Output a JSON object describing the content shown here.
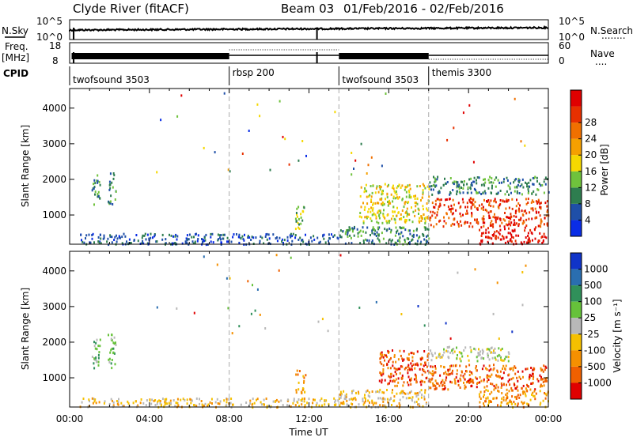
{
  "header": {
    "station": "Clyde River (fitACF)",
    "beam": "Beam 03",
    "date_range": "01/Feb/2016 - 02/Feb/2016"
  },
  "panels": {
    "nsky": {
      "left_label": "N.Sky",
      "left_ticks": [
        "10^5",
        "10^0"
      ],
      "right_ticks": [
        "10^5",
        "10^0"
      ],
      "right_label": "N.Search",
      "right_legend": "........"
    },
    "freq": {
      "left_label_1": "Freq.",
      "left_label_2": "[MHz]",
      "left_ticks": [
        "18",
        "8"
      ],
      "right_ticks": [
        "60",
        "0"
      ],
      "right_label": "Nave",
      "right_legend": "...."
    },
    "cpid": {
      "label": "CPID",
      "modes": [
        {
          "name": "twofsound 3503",
          "start": 0.0,
          "end": 8.0
        },
        {
          "name": "rbsp 200",
          "start": 8.0,
          "end": 13.5
        },
        {
          "name": "twofsound 3503",
          "start": 13.5,
          "end": 18.0
        },
        {
          "name": "themis 3300",
          "start": 18.0,
          "end": 24.0
        }
      ]
    }
  },
  "chart_data": [
    {
      "type": "heatmap",
      "name": "power",
      "ylabel": "Slant Range [km]",
      "yticks": [
        1000,
        2000,
        3000,
        4000
      ],
      "ylim": [
        180,
        4550
      ],
      "xlim": [
        0,
        24
      ],
      "colorbar": {
        "label": "Power [dB]",
        "ticks": [
          "4",
          "8",
          "12",
          "16",
          "20",
          "24",
          "28"
        ],
        "colors": [
          "#0a2de6",
          "#1f4fa8",
          "#2e7d4f",
          "#6fc23c",
          "#f5d800",
          "#f5a000",
          "#f07000",
          "#e83000",
          "#e00000"
        ]
      },
      "regions": [
        {
          "t0": 1.1,
          "t1": 1.5,
          "r0": 1300,
          "r1": 2200,
          "level": 2
        },
        {
          "t0": 1.9,
          "t1": 2.3,
          "r0": 1300,
          "r1": 2300,
          "level": 2
        },
        {
          "t0": 0.5,
          "t1": 13.5,
          "r0": 200,
          "r1": 500,
          "level": 1
        },
        {
          "t0": 11.3,
          "t1": 11.8,
          "r0": 600,
          "r1": 1300,
          "level": 3
        },
        {
          "t0": 13.5,
          "t1": 18.0,
          "r0": 200,
          "r1": 700,
          "level": 2
        },
        {
          "t0": 14.5,
          "t1": 18.0,
          "r0": 800,
          "r1": 1900,
          "level": 4
        },
        {
          "t0": 18.0,
          "t1": 24.0,
          "r0": 1600,
          "r1": 2100,
          "level": 2
        },
        {
          "t0": 18.0,
          "t1": 24.0,
          "r0": 700,
          "r1": 1500,
          "level": 7
        },
        {
          "t0": 20.5,
          "t1": 24.0,
          "r0": 200,
          "r1": 700,
          "level": 8
        }
      ]
    },
    {
      "type": "heatmap",
      "name": "velocity",
      "ylabel": "Slant Range [km]",
      "yticks": [
        1000,
        2000,
        3000,
        4000
      ],
      "ylim": [
        180,
        4550
      ],
      "xlim": [
        0,
        24
      ],
      "xlabel": "Time UT",
      "xticks": [
        "00:00",
        "04:00",
        "08:00",
        "12:00",
        "16:00",
        "20:00",
        "00:00"
      ],
      "colorbar": {
        "label": "Velocity [m s⁻¹]",
        "ticks": [
          "1000",
          "500",
          "100",
          "25",
          "-25",
          "-100",
          "-500",
          "-1000"
        ],
        "colors": [
          "#1034c8",
          "#2a6eb0",
          "#30905a",
          "#66c23a",
          "#b8b8b8",
          "#f5c000",
          "#f59000",
          "#f06000",
          "#e00000"
        ]
      },
      "regions": [
        {
          "t0": 1.1,
          "t1": 1.5,
          "r0": 1300,
          "r1": 2200,
          "level": 3
        },
        {
          "t0": 1.9,
          "t1": 2.3,
          "r0": 1300,
          "r1": 2300,
          "level": 3
        },
        {
          "t0": 0.5,
          "t1": 13.5,
          "r0": 200,
          "r1": 450,
          "level": 5
        },
        {
          "t0": 11.3,
          "t1": 11.8,
          "r0": 600,
          "r1": 1300,
          "level": 6
        },
        {
          "t0": 13.5,
          "t1": 18.0,
          "r0": 200,
          "r1": 700,
          "level": 5
        },
        {
          "t0": 15.5,
          "t1": 18.0,
          "r0": 800,
          "r1": 1800,
          "level": 7
        },
        {
          "t0": 18.0,
          "t1": 22.0,
          "r0": 1500,
          "r1": 1900,
          "level": 4
        },
        {
          "t0": 18.0,
          "t1": 24.0,
          "r0": 700,
          "r1": 1400,
          "level": 7
        },
        {
          "t0": 20.5,
          "t1": 24.0,
          "r0": 200,
          "r1": 700,
          "level": 6
        }
      ]
    }
  ]
}
